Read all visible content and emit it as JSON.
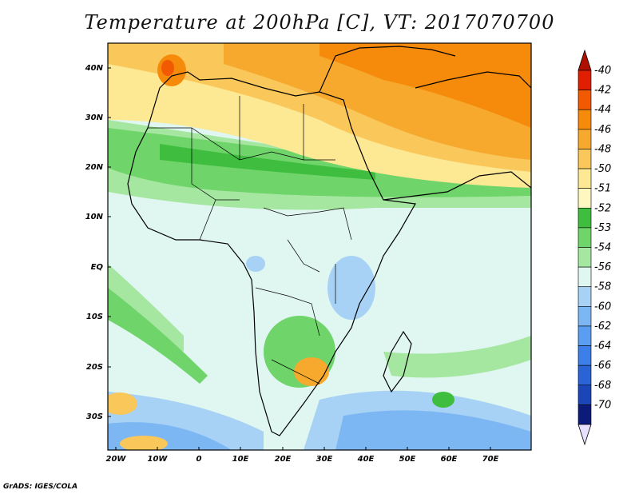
{
  "title": "Temperature at 200hPa [C], VT: 2017070700",
  "credit": "GrADS: IGES/COLA",
  "map": {
    "lat_labels": [
      "40N",
      "30N",
      "20N",
      "10N",
      "EQ",
      "10S",
      "20S",
      "30S"
    ],
    "lon_labels": [
      "20W",
      "10W",
      "0",
      "10E",
      "20E",
      "30E",
      "40E",
      "50E",
      "60E",
      "70E"
    ]
  },
  "colorbar": {
    "levels": [
      "-40",
      "-42",
      "-44",
      "-46",
      "-48",
      "-50",
      "-51",
      "-52",
      "-53",
      "-54",
      "-56",
      "-58",
      "-60",
      "-62",
      "-64",
      "-66",
      "-68",
      "-70"
    ],
    "colors": [
      "#e01e00",
      "#f15a00",
      "#f58a0b",
      "#f7a92e",
      "#f9c75a",
      "#fde893",
      "#fef7c0",
      "#3fbd3f",
      "#6fd46a",
      "#a5e7a0",
      "#dff7f0",
      "#a7d2f5",
      "#7db7f3",
      "#5b9df0",
      "#3d7fe8",
      "#2a63d6",
      "#1b46b8",
      "#0c1b7a"
    ],
    "top_color": "#b01000",
    "bottom_color": "#e8e0ff"
  }
}
